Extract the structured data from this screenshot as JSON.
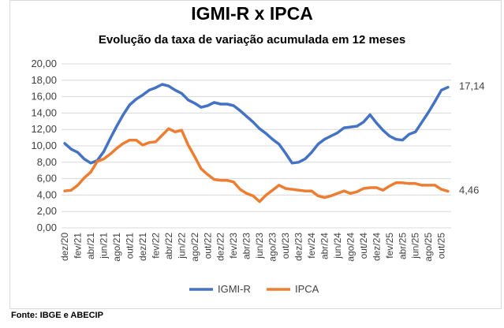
{
  "chart_data": {
    "type": "line",
    "title": "IGMI-R x IPCA",
    "subtitle": "Evolução da taxa de variação acumulada em 12 meses",
    "source": "Fonte: IBGE e ABECIP",
    "ylim": [
      0,
      20
    ],
    "yticks": [
      "0,00",
      "2,00",
      "4,00",
      "6,00",
      "8,00",
      "10,00",
      "12,00",
      "14,00",
      "16,00",
      "18,00",
      "20,00"
    ],
    "ytick_values": [
      0,
      2,
      4,
      6,
      8,
      10,
      12,
      14,
      16,
      18,
      20
    ],
    "grid": true,
    "legend_position": "bottom",
    "x": [
      "dez/20",
      "jan/21",
      "fev/21",
      "mar/21",
      "abr/21",
      "mai/21",
      "jun/21",
      "jul/21",
      "ago/21",
      "set/21",
      "out/21",
      "nov/21",
      "dez/21",
      "jan/22",
      "fev/22",
      "mar/22",
      "abr/22",
      "mai/22",
      "jun/22",
      "jul/22",
      "ago/22",
      "set/22",
      "out/22",
      "nov/22",
      "dez/22",
      "jan/23",
      "fev/23",
      "mar/23",
      "abr/23",
      "mai/23",
      "jun/23",
      "jul/23",
      "ago/23",
      "set/23",
      "out/23",
      "nov/23",
      "dez/23",
      "jan/24",
      "fev/24",
      "mar/24",
      "abr/24",
      "mai/24",
      "jun/24",
      "jul/24",
      "ago/24",
      "set/24",
      "out/24",
      "nov/24",
      "dez/24",
      "jan/25",
      "fev/25",
      "mar/25",
      "abr/25",
      "mai/25",
      "jun/25",
      "jul/25",
      "ago/25",
      "set/25",
      "out/25",
      "nov/25"
    ],
    "xtick_labels": [
      "dez/20",
      "fev/21",
      "abr/21",
      "jun/21",
      "ago/21",
      "out/21",
      "dez/21",
      "fev/22",
      "abr/22",
      "jun/22",
      "ago/22",
      "out/22",
      "dez/22",
      "fev/23",
      "abr/23",
      "jun/23",
      "ago/23",
      "out/23",
      "dez/23",
      "fev/24",
      "abr/24",
      "jun/24",
      "ago/24",
      "out/24",
      "dez/24",
      "fev/25",
      "abr/25",
      "jun/25",
      "ago/25",
      "out/25"
    ],
    "series": [
      {
        "name": "IGMI-R",
        "color": "#4472C4",
        "end_label": "17,14",
        "values": [
          10.3,
          9.6,
          9.2,
          8.4,
          7.9,
          8.2,
          9.3,
          10.9,
          12.4,
          13.8,
          15.0,
          15.7,
          16.2,
          16.8,
          17.1,
          17.5,
          17.3,
          16.8,
          16.4,
          15.6,
          15.2,
          14.7,
          14.9,
          15.3,
          15.1,
          15.1,
          14.9,
          14.3,
          13.6,
          12.9,
          12.1,
          11.5,
          10.8,
          10.2,
          9.1,
          7.9,
          8.0,
          8.4,
          9.2,
          10.2,
          10.8,
          11.2,
          11.6,
          12.2,
          12.3,
          12.4,
          12.9,
          13.8,
          12.8,
          11.9,
          11.2,
          10.8,
          10.7,
          11.4,
          11.7,
          12.9,
          14.1,
          15.4,
          16.8,
          17.14
        ]
      },
      {
        "name": "IPCA",
        "color": "#ED7D31",
        "end_label": "4,46",
        "values": [
          4.5,
          4.6,
          5.2,
          6.1,
          6.8,
          8.1,
          8.4,
          9.0,
          9.7,
          10.3,
          10.7,
          10.7,
          10.1,
          10.4,
          10.5,
          11.3,
          12.1,
          11.7,
          11.9,
          10.1,
          8.7,
          7.2,
          6.5,
          5.9,
          5.8,
          5.8,
          5.6,
          4.7,
          4.2,
          3.9,
          3.2,
          4.0,
          4.6,
          5.2,
          4.8,
          4.7,
          4.6,
          4.5,
          4.5,
          3.9,
          3.7,
          3.9,
          4.2,
          4.5,
          4.2,
          4.4,
          4.8,
          4.9,
          4.9,
          4.6,
          5.1,
          5.5,
          5.5,
          5.4,
          5.4,
          5.2,
          5.2,
          5.2,
          4.7,
          4.46
        ]
      }
    ]
  }
}
